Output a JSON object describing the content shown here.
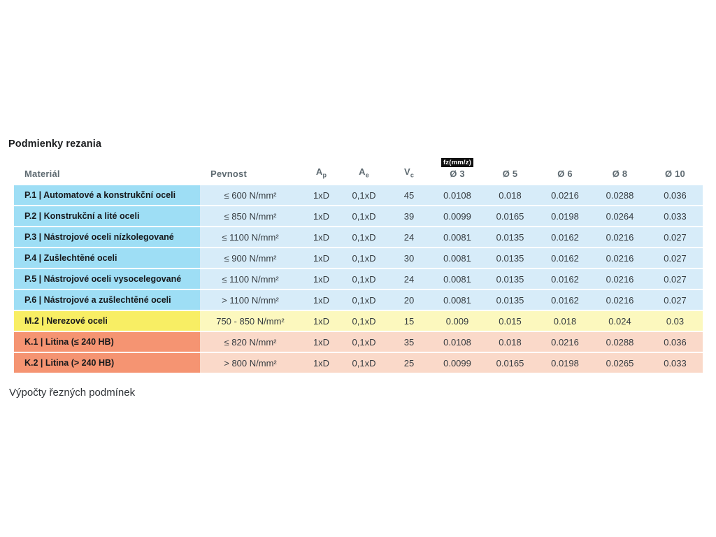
{
  "page": {
    "title": "Podmienky rezania",
    "footer_heading": "Výpočty řezných podmínek"
  },
  "table": {
    "headers": {
      "material": "Materiál",
      "pevnost": "Pevnost",
      "ap": {
        "base": "A",
        "sub": "p"
      },
      "ae": {
        "base": "A",
        "sub": "e"
      },
      "vc": {
        "base": "V",
        "sub": "c"
      },
      "fz_badge": "fz(mm/z)",
      "d3": "Ø 3",
      "d5": "Ø 5",
      "d6": "Ø 6",
      "d8": "Ø 8",
      "d10": "Ø 10"
    },
    "rows": [
      {
        "tone": "blue",
        "material": "P.1 | Automatové a konstrukční oceli",
        "pevnost": "≤ 600 N/mm²",
        "ap": "1xD",
        "ae": "0,1xD",
        "vc": "45",
        "d3": "0.0108",
        "d5": "0.018",
        "d6": "0.0216",
        "d8": "0.0288",
        "d10": "0.036"
      },
      {
        "tone": "blue",
        "material": "P.2 | Konstrukční a lité oceli",
        "pevnost": "≤ 850 N/mm²",
        "ap": "1xD",
        "ae": "0,1xD",
        "vc": "39",
        "d3": "0.0099",
        "d5": "0.0165",
        "d6": "0.0198",
        "d8": "0.0264",
        "d10": "0.033"
      },
      {
        "tone": "blue",
        "material": "P.3 | Nástrojové oceli nízkolegované",
        "pevnost": "≤ 1100 N/mm²",
        "ap": "1xD",
        "ae": "0,1xD",
        "vc": "24",
        "d3": "0.0081",
        "d5": "0.0135",
        "d6": "0.0162",
        "d8": "0.0216",
        "d10": "0.027"
      },
      {
        "tone": "blue",
        "material": "P.4 | Zušlechtěné oceli",
        "pevnost": "≤ 900 N/mm²",
        "ap": "1xD",
        "ae": "0,1xD",
        "vc": "30",
        "d3": "0.0081",
        "d5": "0.0135",
        "d6": "0.0162",
        "d8": "0.0216",
        "d10": "0.027"
      },
      {
        "tone": "blue",
        "material": "P.5 | Nástrojové oceli vysocelegované",
        "pevnost": "≤ 1100 N/mm²",
        "ap": "1xD",
        "ae": "0,1xD",
        "vc": "24",
        "d3": "0.0081",
        "d5": "0.0135",
        "d6": "0.0162",
        "d8": "0.0216",
        "d10": "0.027"
      },
      {
        "tone": "blue",
        "material": "P.6 | Nástrojové a zušlechtěné oceli",
        "pevnost": "> 1100 N/mm²",
        "ap": "1xD",
        "ae": "0,1xD",
        "vc": "20",
        "d3": "0.0081",
        "d5": "0.0135",
        "d6": "0.0162",
        "d8": "0.0216",
        "d10": "0.027"
      },
      {
        "tone": "yellow",
        "material": "M.2 | Nerezové oceli",
        "pevnost": "750 - 850 N/mm²",
        "ap": "1xD",
        "ae": "0,1xD",
        "vc": "15",
        "d3": "0.009",
        "d5": "0.015",
        "d6": "0.018",
        "d8": "0.024",
        "d10": "0.03"
      },
      {
        "tone": "orange",
        "material": "K.1 | Litina (≤ 240 HB)",
        "pevnost": "≤ 820 N/mm²",
        "ap": "1xD",
        "ae": "0,1xD",
        "vc": "35",
        "d3": "0.0108",
        "d5": "0.018",
        "d6": "0.0216",
        "d8": "0.0288",
        "d10": "0.036"
      },
      {
        "tone": "orange",
        "material": "K.2 | Litina (> 240 HB)",
        "pevnost": "> 800 N/mm²",
        "ap": "1xD",
        "ae": "0,1xD",
        "vc": "25",
        "d3": "0.0099",
        "d5": "0.0165",
        "d6": "0.0198",
        "d8": "0.0265",
        "d10": "0.033"
      }
    ]
  },
  "colors": {
    "steel_label": "#9edef5",
    "steel_cell": "#d7ecf9",
    "stainless_label": "#f8ee64",
    "stainless_cell": "#fcf8be",
    "cast_iron_label": "#f59472",
    "cast_iron_cell": "#fad9c9",
    "fz_badge_bg": "#111111"
  }
}
